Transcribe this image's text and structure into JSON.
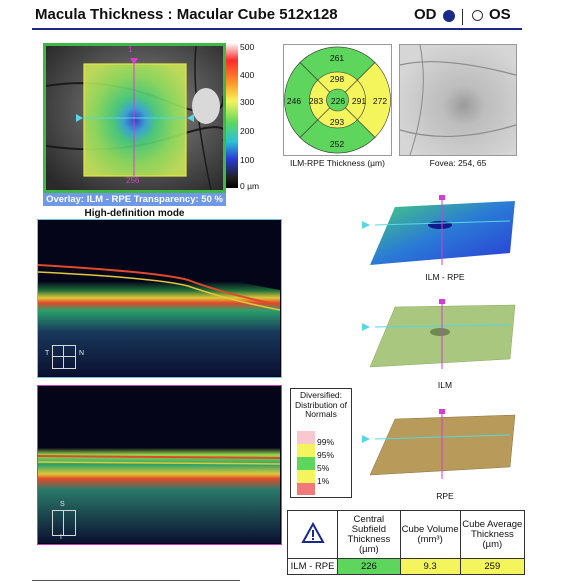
{
  "header": {
    "title": "Macula Thickness : Macular Cube 512x128",
    "od_label": "OD",
    "os_label": "OS",
    "selected_eye": "OD"
  },
  "fundus_overlay": {
    "scale_labels": [
      "500",
      "400",
      "300",
      "200",
      "100",
      "0 µm"
    ],
    "top_marker": "1",
    "bottom_marker": "256",
    "overlay_caption": "Overlay: ILM - RPE  Transparency: 50 %",
    "mode_caption": "High-definition mode"
  },
  "etdrs_grid": {
    "caption": "ILM-RPE Thickness (µm)",
    "center": "226",
    "inner_superior": "298",
    "inner_nasal": "291",
    "inner_inferior": "293",
    "inner_temporal": "283",
    "outer_superior": "261",
    "outer_nasal": "272",
    "outer_inferior": "252",
    "outer_temporal": "246",
    "colors": {
      "green": "#5ed65e",
      "yellow": "#f4f45c"
    }
  },
  "fovea_image": {
    "caption": "Fovea: 254, 65"
  },
  "bscans": {
    "top_orient_left": "T",
    "top_orient_right": "N",
    "bottom_orient_top": "S",
    "bottom_orient_bottom": "I"
  },
  "surfaces": [
    {
      "label": "ILM - RPE"
    },
    {
      "label": "ILM"
    },
    {
      "label": "RPE"
    }
  ],
  "distribution_legend": {
    "title": "Diversified: Distribution of Normals",
    "levels": [
      "99%",
      "95%",
      "5%",
      "1%"
    ],
    "colors": [
      "#f7c8d0",
      "#f4f45c",
      "#5ed65e",
      "#f4f45c",
      "#f07a7a"
    ]
  },
  "summary_table": {
    "headers": [
      "Central Subfield Thickness (µm)",
      "Cube Volume (mm³)",
      "Cube Average Thickness (µm)"
    ],
    "row_label": "ILM - RPE",
    "values": [
      "226",
      "9.3",
      "259"
    ],
    "value_colors": [
      "#5ed65e",
      "#f4f45c",
      "#f4f45c"
    ]
  }
}
